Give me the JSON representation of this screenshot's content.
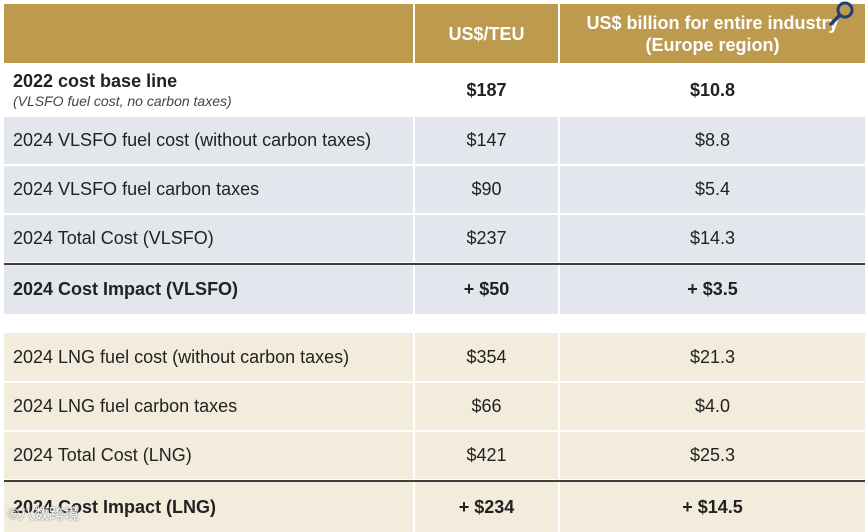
{
  "header": {
    "col1": "",
    "col2": "US$/TEU",
    "col3": "US$ billion for entire industry (Europe region)"
  },
  "baseline": {
    "label": "2022 cost base line",
    "sublabel": "(VLSFO fuel cost, no carbon taxes)",
    "teu": "$187",
    "bn": "$10.8"
  },
  "vlsfo_rows": [
    {
      "label": "2024 VLSFO fuel cost (without carbon taxes)",
      "teu": "$147",
      "bn": "$8.8"
    },
    {
      "label": "2024 VLSFO fuel carbon taxes",
      "teu": "$90",
      "bn": "$5.4"
    },
    {
      "label": "2024 Total Cost (VLSFO)",
      "teu": "$237",
      "bn": "$14.3"
    }
  ],
  "vlsfo_impact": {
    "label": "2024 Cost Impact (VLSFO)",
    "teu": "+ $50",
    "bn": "+ $3.5"
  },
  "lng_rows": [
    {
      "label": "2024 LNG fuel cost (without carbon taxes)",
      "teu": "$354",
      "bn": "$21.3"
    },
    {
      "label": "2024 LNG fuel carbon taxes",
      "teu": "$66",
      "bn": "$4.0"
    },
    {
      "label": "2024 Total Cost (LNG)",
      "teu": "$421",
      "bn": "$25.3"
    }
  ],
  "lng_impact": {
    "label": "2024 Cost Impact (LNG)",
    "teu": "+ $234",
    "bn": "+ $14.5"
  },
  "watermark": "©八数跨境",
  "colors": {
    "header": "#BE9A4F",
    "blue_rows": "#E4E6EE",
    "tan_rows": "#F3ECDD"
  },
  "icons": {
    "corner": "search-icon"
  }
}
